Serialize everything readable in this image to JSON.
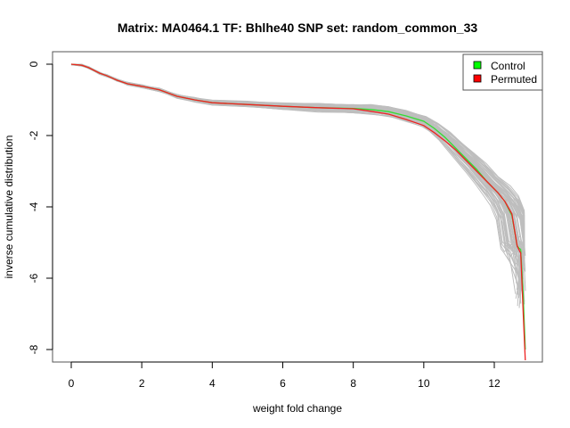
{
  "chart_data": {
    "type": "line",
    "title": "Matrix: MA0464.1 TF: Bhlhe40 SNP set: random_common_33",
    "xlabel": "weight fold change",
    "ylabel": "inverse cumulative distribution",
    "xlim": [
      -0.5,
      13.4
    ],
    "ylim": [
      -8.4,
      0.35
    ],
    "xticks": [
      0,
      2,
      4,
      6,
      8,
      10,
      12
    ],
    "yticks": [
      0,
      -2,
      -4,
      -6,
      -8
    ],
    "grid": false,
    "legend": {
      "position": "top-right",
      "entries": [
        {
          "label": "Control",
          "color": "#00ff00"
        },
        {
          "label": "Permuted",
          "color": "#ff0000"
        }
      ]
    },
    "background_color": "#bebebe",
    "series": [
      {
        "name": "Control",
        "color": "#33dd33",
        "x": [
          0,
          0.3,
          0.5,
          0.8,
          1.0,
          1.3,
          1.6,
          2.0,
          2.5,
          3.0,
          3.5,
          4.0,
          5.0,
          6.0,
          7.0,
          8.0,
          8.5,
          9.0,
          9.5,
          10.0,
          10.3,
          10.6,
          10.9,
          11.2,
          11.5,
          11.8,
          12.1,
          12.3,
          12.5,
          12.65,
          12.75,
          12.82,
          12.88
        ],
        "y": [
          0,
          -0.03,
          -0.1,
          -0.25,
          -0.32,
          -0.45,
          -0.55,
          -0.62,
          -0.72,
          -0.9,
          -1.0,
          -1.08,
          -1.13,
          -1.18,
          -1.22,
          -1.24,
          -1.27,
          -1.33,
          -1.45,
          -1.6,
          -1.8,
          -2.05,
          -2.35,
          -2.65,
          -2.95,
          -3.3,
          -3.6,
          -3.85,
          -4.25,
          -5.1,
          -5.2,
          -6.5,
          -8.0
        ]
      },
      {
        "name": "Permuted",
        "color": "#ee2222",
        "x": [
          0,
          0.3,
          0.5,
          0.8,
          1.0,
          1.3,
          1.6,
          2.0,
          2.5,
          3.0,
          3.5,
          4.0,
          5.0,
          6.0,
          7.0,
          8.0,
          8.5,
          9.0,
          9.5,
          10.0,
          10.3,
          10.6,
          10.9,
          11.2,
          11.5,
          11.8,
          12.1,
          12.3,
          12.5,
          12.65,
          12.75,
          12.82,
          12.88
        ],
        "y": [
          0,
          -0.03,
          -0.1,
          -0.25,
          -0.32,
          -0.45,
          -0.55,
          -0.62,
          -0.72,
          -0.9,
          -1.0,
          -1.08,
          -1.13,
          -1.18,
          -1.22,
          -1.25,
          -1.32,
          -1.4,
          -1.55,
          -1.72,
          -1.92,
          -2.15,
          -2.4,
          -2.7,
          -3.0,
          -3.3,
          -3.6,
          -3.85,
          -4.2,
          -5.1,
          -5.3,
          -7.0,
          -8.3
        ]
      }
    ]
  }
}
